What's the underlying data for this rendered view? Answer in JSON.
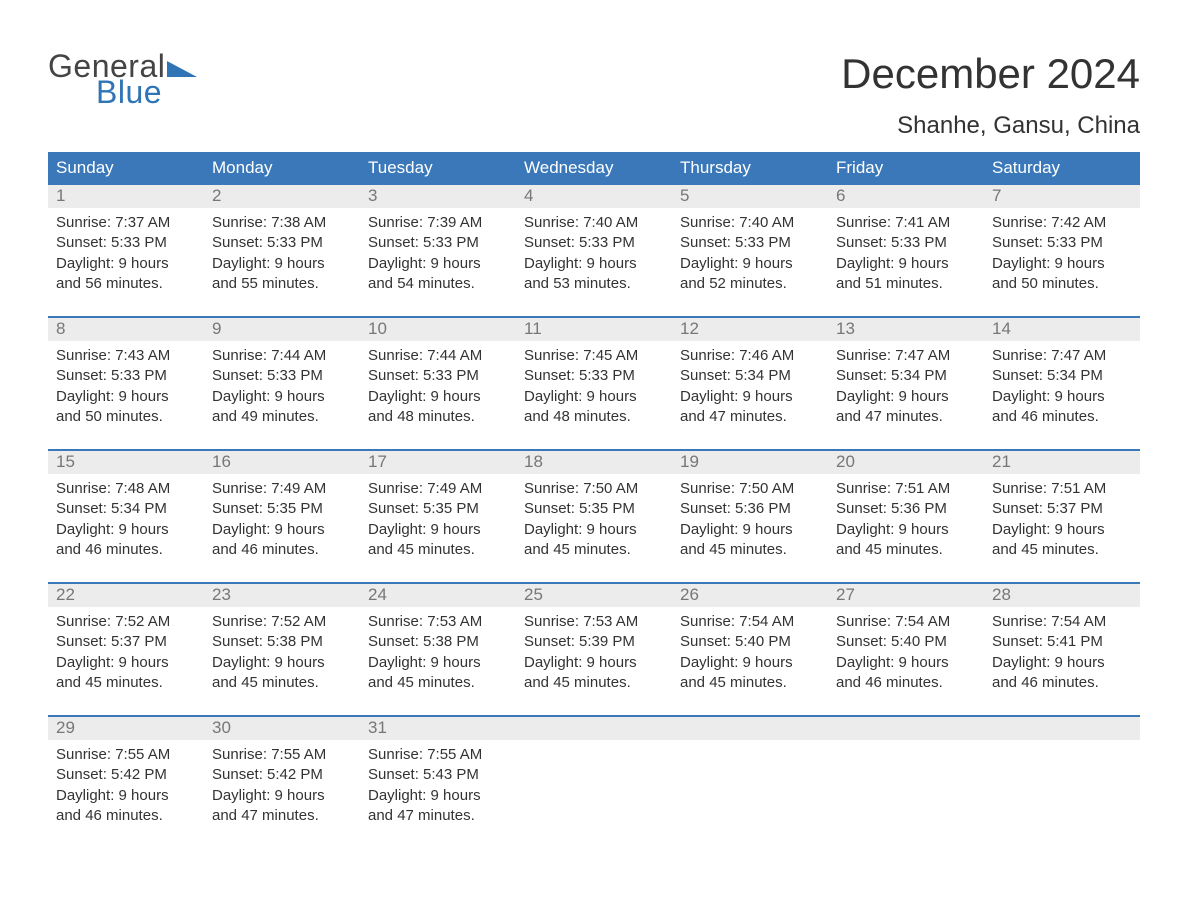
{
  "logo": {
    "text1": "General",
    "text2": "Blue",
    "triangle_color": "#2f74b5"
  },
  "title": "December 2024",
  "location": "Shanhe, Gansu, China",
  "colors": {
    "header_bg": "#3a78b9",
    "header_text": "#ffffff",
    "daynum_bg": "#ececec",
    "daynum_text": "#777777",
    "body_text": "#333333",
    "divider": "#3a78b9"
  },
  "days_of_week": [
    "Sunday",
    "Monday",
    "Tuesday",
    "Wednesday",
    "Thursday",
    "Friday",
    "Saturday"
  ],
  "weeks": [
    [
      {
        "n": "1",
        "sr": "7:37 AM",
        "ss": "5:33 PM",
        "dl": "9 hours and 56 minutes."
      },
      {
        "n": "2",
        "sr": "7:38 AM",
        "ss": "5:33 PM",
        "dl": "9 hours and 55 minutes."
      },
      {
        "n": "3",
        "sr": "7:39 AM",
        "ss": "5:33 PM",
        "dl": "9 hours and 54 minutes."
      },
      {
        "n": "4",
        "sr": "7:40 AM",
        "ss": "5:33 PM",
        "dl": "9 hours and 53 minutes."
      },
      {
        "n": "5",
        "sr": "7:40 AM",
        "ss": "5:33 PM",
        "dl": "9 hours and 52 minutes."
      },
      {
        "n": "6",
        "sr": "7:41 AM",
        "ss": "5:33 PM",
        "dl": "9 hours and 51 minutes."
      },
      {
        "n": "7",
        "sr": "7:42 AM",
        "ss": "5:33 PM",
        "dl": "9 hours and 50 minutes."
      }
    ],
    [
      {
        "n": "8",
        "sr": "7:43 AM",
        "ss": "5:33 PM",
        "dl": "9 hours and 50 minutes."
      },
      {
        "n": "9",
        "sr": "7:44 AM",
        "ss": "5:33 PM",
        "dl": "9 hours and 49 minutes."
      },
      {
        "n": "10",
        "sr": "7:44 AM",
        "ss": "5:33 PM",
        "dl": "9 hours and 48 minutes."
      },
      {
        "n": "11",
        "sr": "7:45 AM",
        "ss": "5:33 PM",
        "dl": "9 hours and 48 minutes."
      },
      {
        "n": "12",
        "sr": "7:46 AM",
        "ss": "5:34 PM",
        "dl": "9 hours and 47 minutes."
      },
      {
        "n": "13",
        "sr": "7:47 AM",
        "ss": "5:34 PM",
        "dl": "9 hours and 47 minutes."
      },
      {
        "n": "14",
        "sr": "7:47 AM",
        "ss": "5:34 PM",
        "dl": "9 hours and 46 minutes."
      }
    ],
    [
      {
        "n": "15",
        "sr": "7:48 AM",
        "ss": "5:34 PM",
        "dl": "9 hours and 46 minutes."
      },
      {
        "n": "16",
        "sr": "7:49 AM",
        "ss": "5:35 PM",
        "dl": "9 hours and 46 minutes."
      },
      {
        "n": "17",
        "sr": "7:49 AM",
        "ss": "5:35 PM",
        "dl": "9 hours and 45 minutes."
      },
      {
        "n": "18",
        "sr": "7:50 AM",
        "ss": "5:35 PM",
        "dl": "9 hours and 45 minutes."
      },
      {
        "n": "19",
        "sr": "7:50 AM",
        "ss": "5:36 PM",
        "dl": "9 hours and 45 minutes."
      },
      {
        "n": "20",
        "sr": "7:51 AM",
        "ss": "5:36 PM",
        "dl": "9 hours and 45 minutes."
      },
      {
        "n": "21",
        "sr": "7:51 AM",
        "ss": "5:37 PM",
        "dl": "9 hours and 45 minutes."
      }
    ],
    [
      {
        "n": "22",
        "sr": "7:52 AM",
        "ss": "5:37 PM",
        "dl": "9 hours and 45 minutes."
      },
      {
        "n": "23",
        "sr": "7:52 AM",
        "ss": "5:38 PM",
        "dl": "9 hours and 45 minutes."
      },
      {
        "n": "24",
        "sr": "7:53 AM",
        "ss": "5:38 PM",
        "dl": "9 hours and 45 minutes."
      },
      {
        "n": "25",
        "sr": "7:53 AM",
        "ss": "5:39 PM",
        "dl": "9 hours and 45 minutes."
      },
      {
        "n": "26",
        "sr": "7:54 AM",
        "ss": "5:40 PM",
        "dl": "9 hours and 45 minutes."
      },
      {
        "n": "27",
        "sr": "7:54 AM",
        "ss": "5:40 PM",
        "dl": "9 hours and 46 minutes."
      },
      {
        "n": "28",
        "sr": "7:54 AM",
        "ss": "5:41 PM",
        "dl": "9 hours and 46 minutes."
      }
    ],
    [
      {
        "n": "29",
        "sr": "7:55 AM",
        "ss": "5:42 PM",
        "dl": "9 hours and 46 minutes."
      },
      {
        "n": "30",
        "sr": "7:55 AM",
        "ss": "5:42 PM",
        "dl": "9 hours and 47 minutes."
      },
      {
        "n": "31",
        "sr": "7:55 AM",
        "ss": "5:43 PM",
        "dl": "9 hours and 47 minutes."
      },
      null,
      null,
      null,
      null
    ]
  ],
  "labels": {
    "sunrise": "Sunrise:",
    "sunset": "Sunset:",
    "daylight": "Daylight:"
  }
}
